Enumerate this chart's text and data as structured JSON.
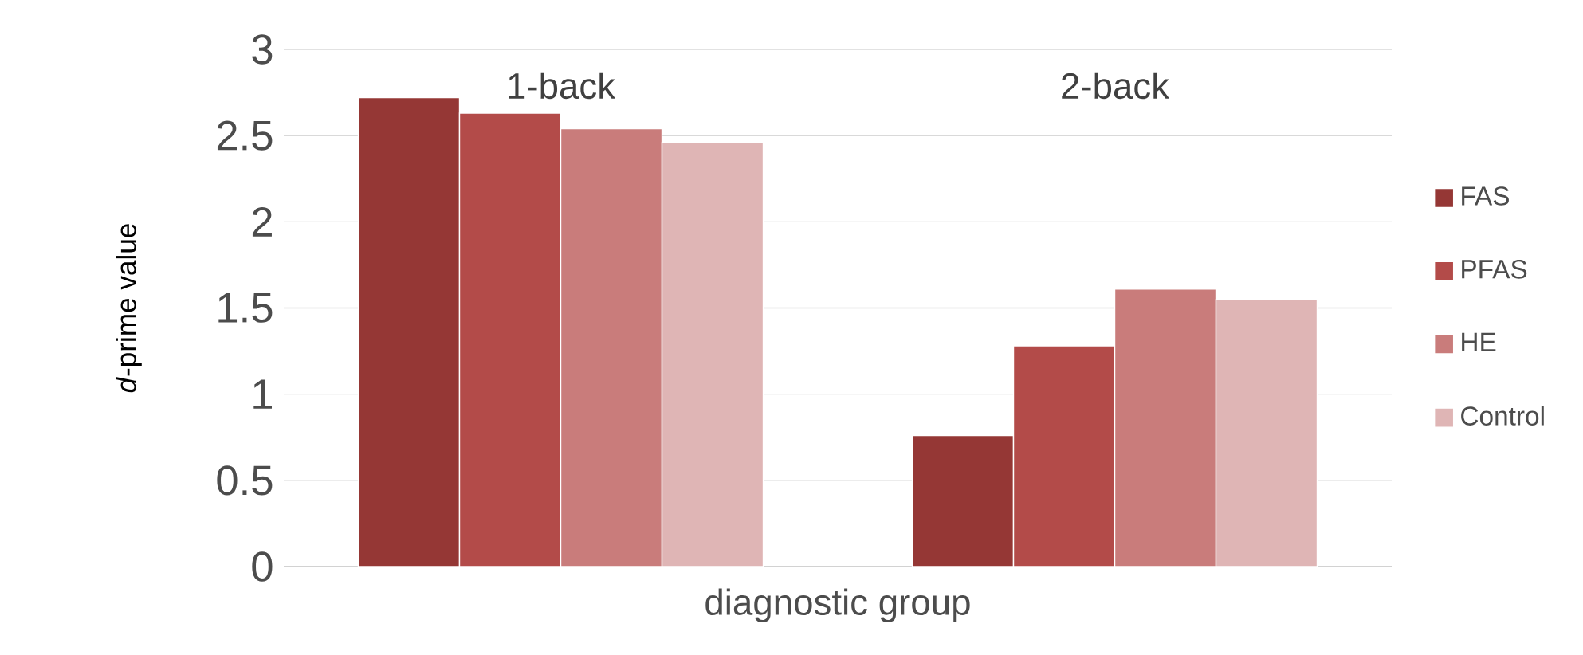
{
  "chart_data": {
    "type": "bar",
    "categories": [
      "1-back",
      "2-back"
    ],
    "xlabel": "diagnostic group",
    "ylabel": "*d*-prime value",
    "series": [
      {
        "name": "FAS",
        "color": "#953735",
        "values": [
          2.72,
          0.76
        ]
      },
      {
        "name": "PFAS",
        "color": "#b34b49",
        "values": [
          2.63,
          1.28
        ]
      },
      {
        "name": "HE",
        "color": "#c97c7b",
        "values": [
          2.54,
          1.61
        ]
      },
      {
        "name": "Control",
        "color": "#dfb5b5",
        "values": [
          2.46,
          1.55
        ]
      }
    ],
    "ylim": [
      0,
      3
    ],
    "yticks": [
      0,
      0.5,
      1,
      1.5,
      2,
      2.5,
      3
    ],
    "grid": "y",
    "legend": "right"
  }
}
